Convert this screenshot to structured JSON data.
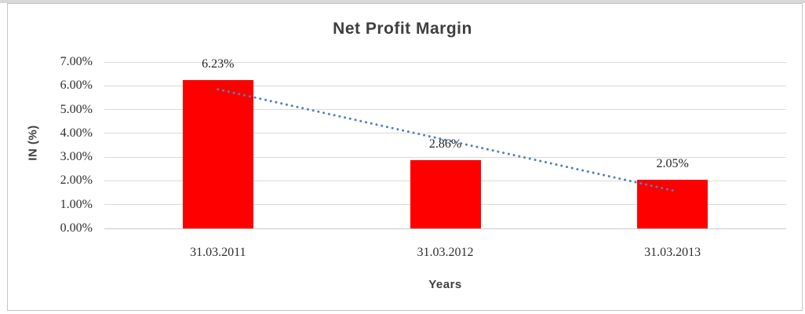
{
  "chart_data": {
    "type": "bar",
    "title": "Net Profit Margin",
    "xlabel": "Years",
    "ylabel": "IN (%)",
    "categories": [
      "31.03.2011",
      "31.03.2012",
      "31.03.2013"
    ],
    "values": [
      6.23,
      2.86,
      2.05
    ],
    "value_labels": [
      "6.23%",
      "2.86%",
      "2.05%"
    ],
    "y_ticks": [
      {
        "value": 7,
        "label": "7.00%"
      },
      {
        "value": 6,
        "label": "6.00%"
      },
      {
        "value": 5,
        "label": "5.00%"
      },
      {
        "value": 4,
        "label": "4.00%"
      },
      {
        "value": 3,
        "label": "3.00%"
      },
      {
        "value": 2,
        "label": "2.00%"
      },
      {
        "value": 1,
        "label": "1.00%"
      },
      {
        "value": 0,
        "label": "0.00%"
      }
    ],
    "ylim": [
      0,
      7
    ],
    "grid": true,
    "legend": "none",
    "bar_color": "#ff0000",
    "gridline_color": "#d9d9d9",
    "trendline": {
      "type": "linear",
      "style": "dotted",
      "color": "#4f81bd",
      "start_value": 5.85,
      "end_value": 1.6
    }
  }
}
